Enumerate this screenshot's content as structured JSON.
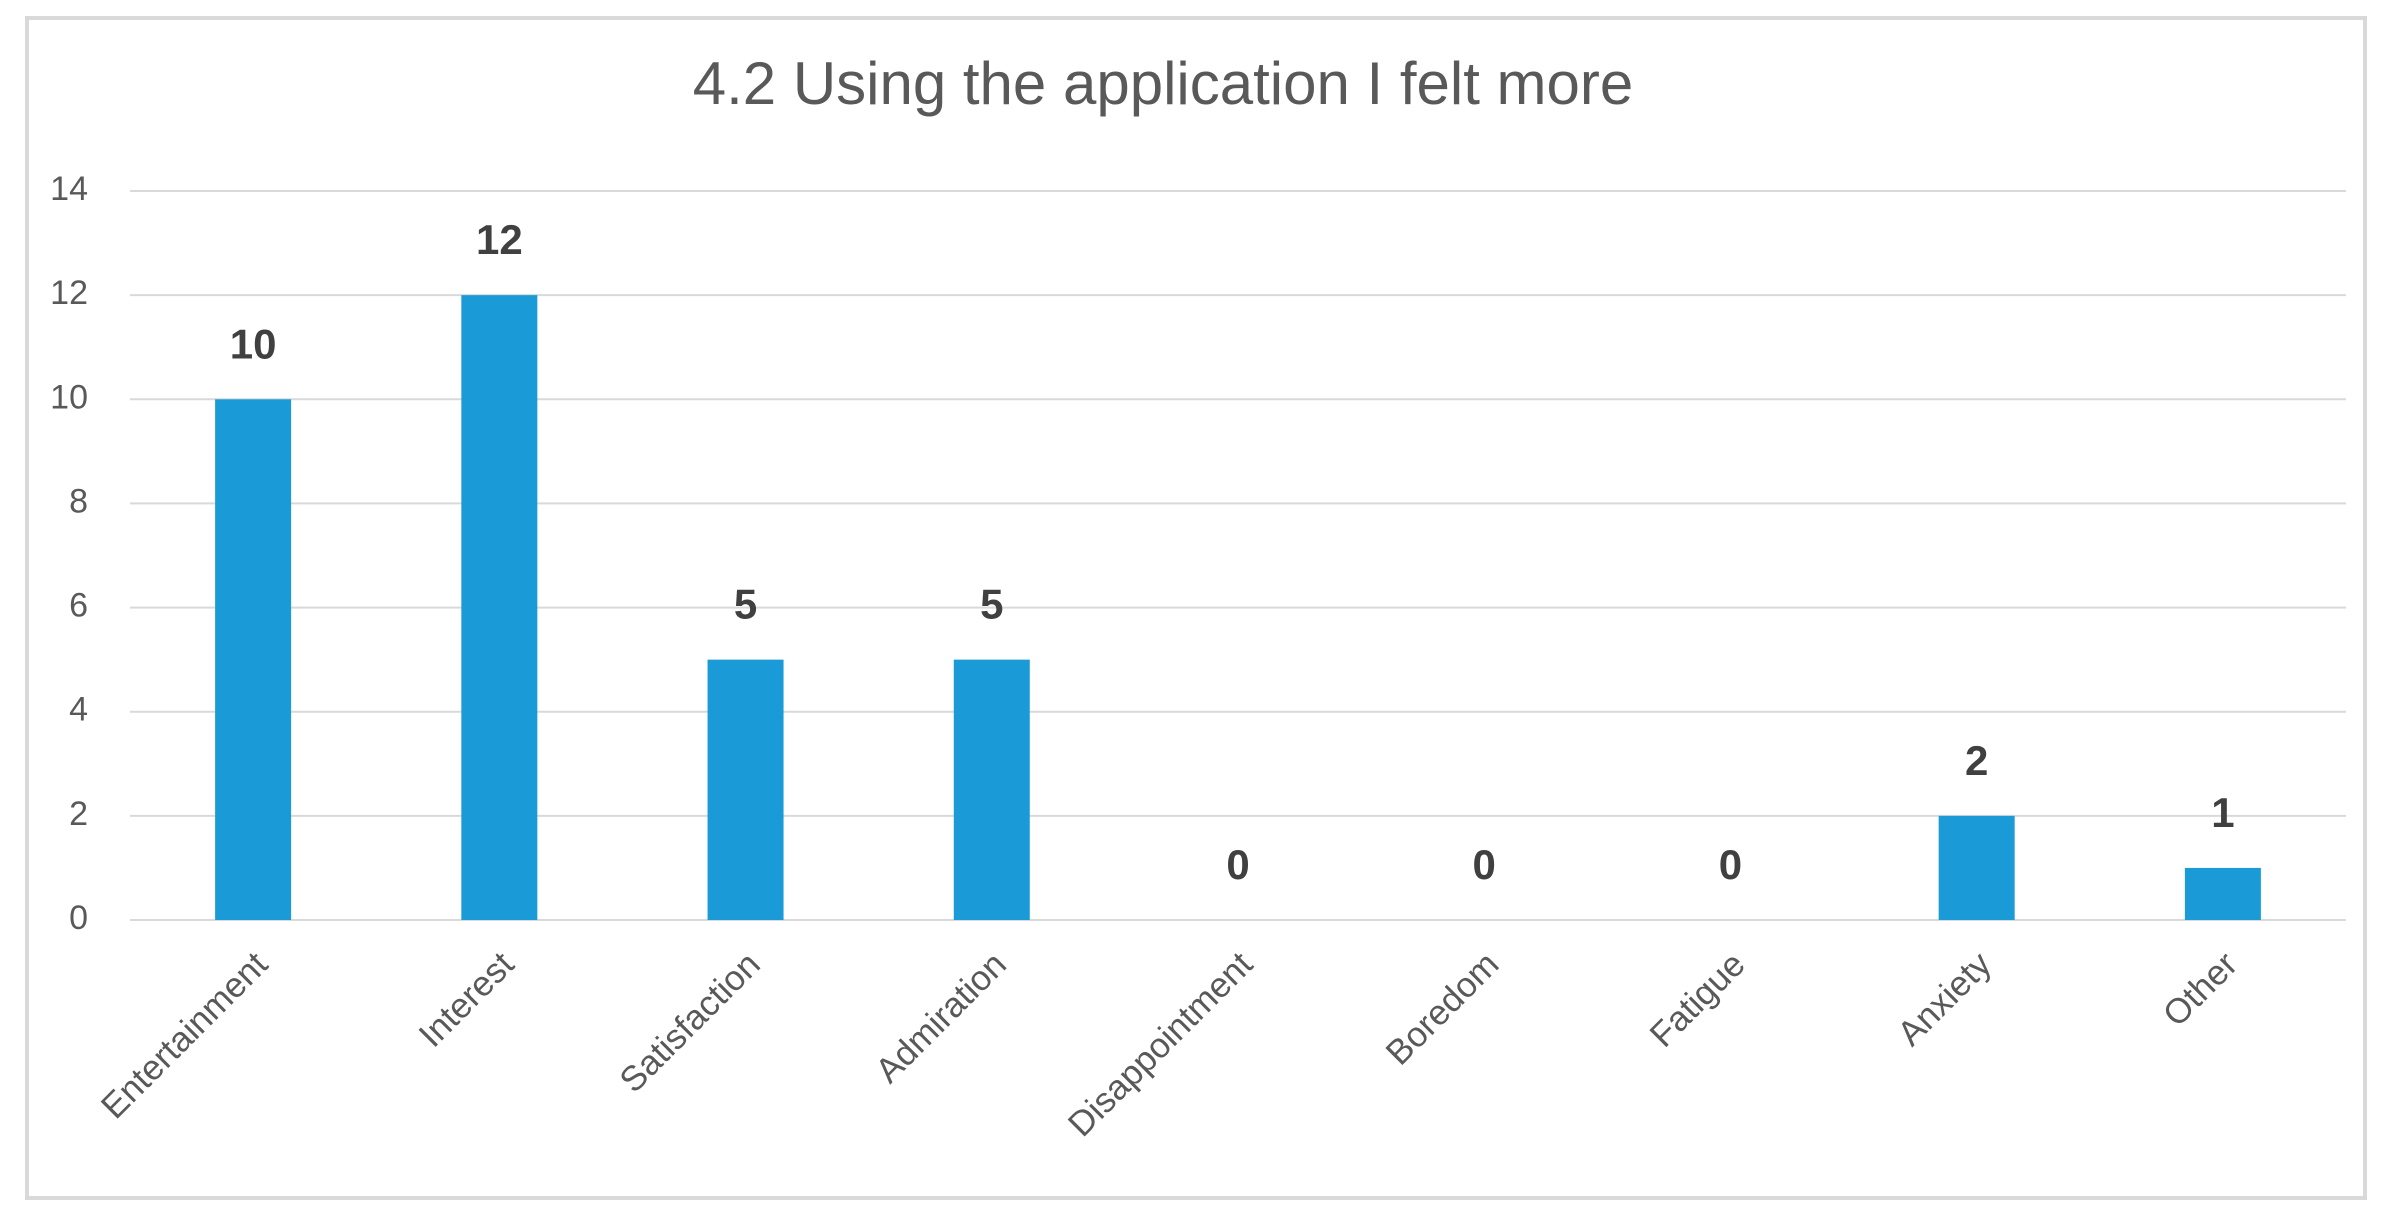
{
  "chart_data": {
    "type": "bar",
    "title": "4.2 Using the application I felt more",
    "categories": [
      "Entertainment",
      "Interest",
      "Satisfaction",
      "Admiration",
      "Disappointment",
      "Boredom",
      "Fatigue",
      "Anxiety",
      "Other"
    ],
    "values": [
      10,
      12,
      5,
      5,
      0,
      0,
      0,
      2,
      1
    ],
    "color": "#1a9bd7",
    "ylim": [
      0,
      14
    ],
    "yticks": [
      0,
      2,
      4,
      6,
      8,
      10,
      12,
      14
    ],
    "grid": true
  }
}
